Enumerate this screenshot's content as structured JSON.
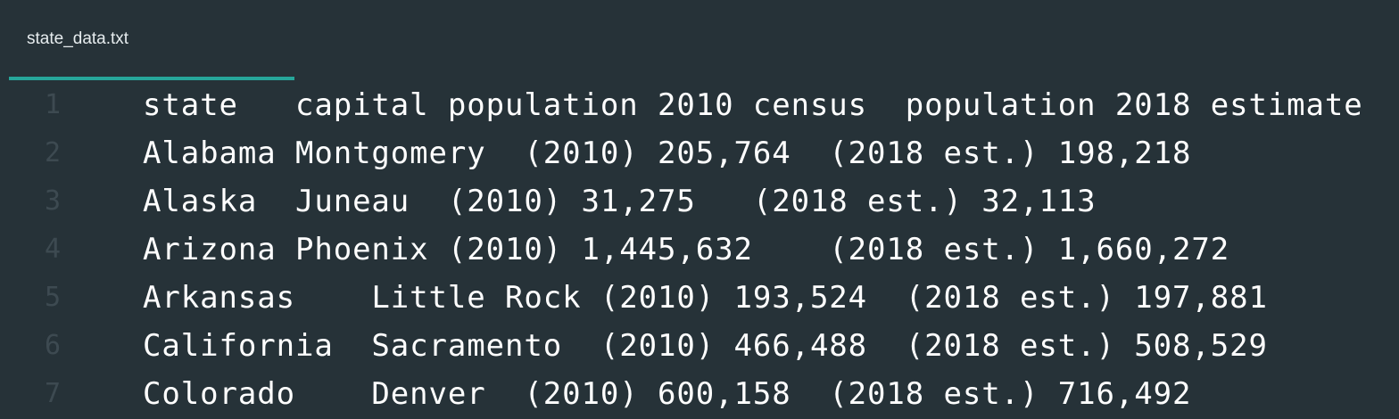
{
  "tab": {
    "title": "state_data.txt"
  },
  "lines": [
    {
      "number": "1",
      "text": "state   capital population 2010 census  population 2018 estimate"
    },
    {
      "number": "2",
      "text": "Alabama Montgomery  (2010) 205,764  (2018 est.) 198,218"
    },
    {
      "number": "3",
      "text": "Alaska  Juneau  (2010) 31,275   (2018 est.) 32,113"
    },
    {
      "number": "4",
      "text": "Arizona Phoenix (2010) 1,445,632    (2018 est.) 1,660,272"
    },
    {
      "number": "5",
      "text": "Arkansas    Little Rock (2010) 193,524  (2018 est.) 197,881"
    },
    {
      "number": "6",
      "text": "California  Sacramento  (2010) 466,488  (2018 est.) 508,529"
    },
    {
      "number": "7",
      "text": "Colorado    Denver  (2010) 600,158  (2018 est.) 716,492"
    }
  ],
  "colors": {
    "background": "#263238",
    "tab_indicator": "#26a69a",
    "text": "#ffffff",
    "line_number": "#3d4a51"
  }
}
